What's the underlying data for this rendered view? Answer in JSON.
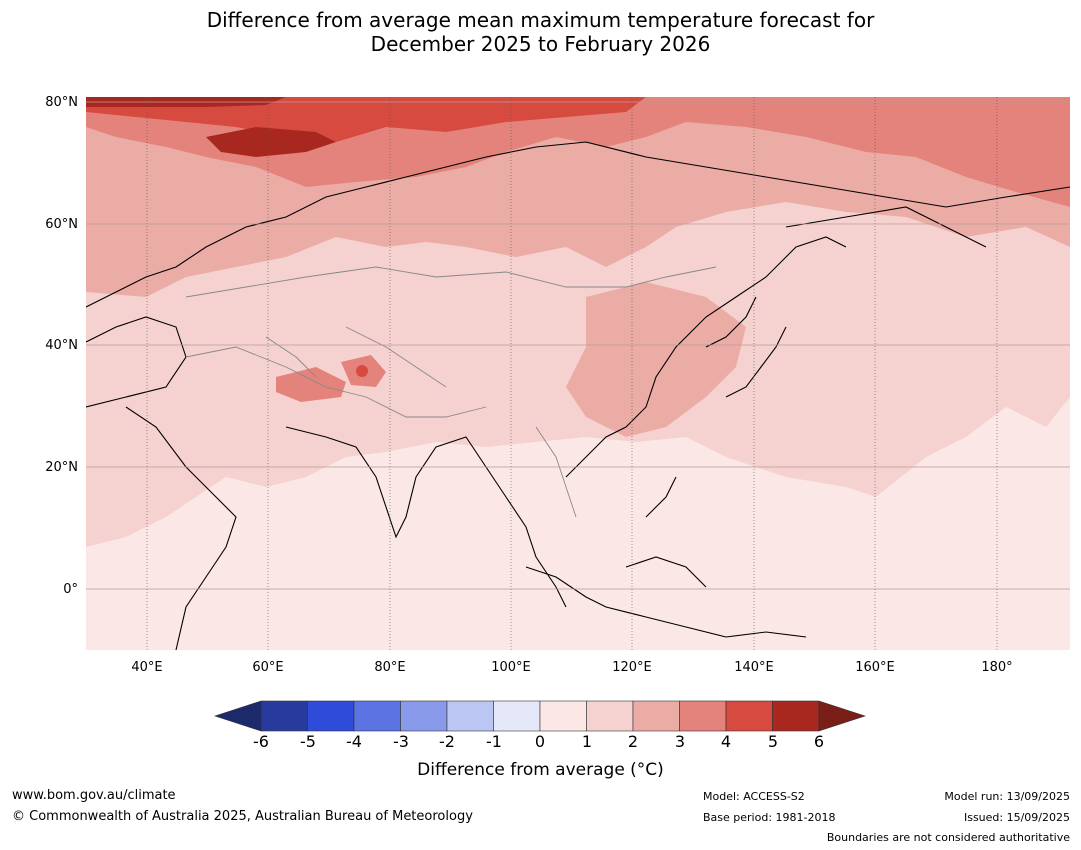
{
  "title": {
    "line1": "Difference from average mean maximum temperature forecast for",
    "line2": "December 2025 to February 2026"
  },
  "axes": {
    "lat_labels": [
      "80°N",
      "60°N",
      "40°N",
      "20°N",
      "0°"
    ],
    "lon_labels": [
      "40°E",
      "60°E",
      "80°E",
      "100°E",
      "120°E",
      "140°E",
      "160°E",
      "180°"
    ],
    "lon_range": [
      30,
      192
    ],
    "lat_range": [
      -10,
      81
    ]
  },
  "legend": {
    "ticks": [
      "-6",
      "-5",
      "-4",
      "-3",
      "-2",
      "-1",
      "0",
      "1",
      "2",
      "3",
      "4",
      "5",
      "6"
    ],
    "colors": [
      "#283a9e",
      "#2f4bd9",
      "#5c73e3",
      "#8a9aea",
      "#bcc6f2",
      "#e5e8f8",
      "#fbe8e6",
      "#f5d2cf",
      "#ebaca6",
      "#e3837b",
      "#d64a3f",
      "#a82820"
    ],
    "under_color": "#1c2a6b",
    "over_color": "#7a1f18",
    "label": "Difference from average (°C)"
  },
  "footer": {
    "url": "www.bom.gov.au/climate",
    "copyright": "© Commonwealth of Australia 2025, Australian Bureau of Meteorology",
    "model": "Model: ACCESS-S2",
    "base_period": "Base period: 1981-2018",
    "model_run": "Model run: 13/09/2025",
    "issued": "Issued: 15/09/2025",
    "disclaimer": "Boundaries are not considered authoritative"
  }
}
